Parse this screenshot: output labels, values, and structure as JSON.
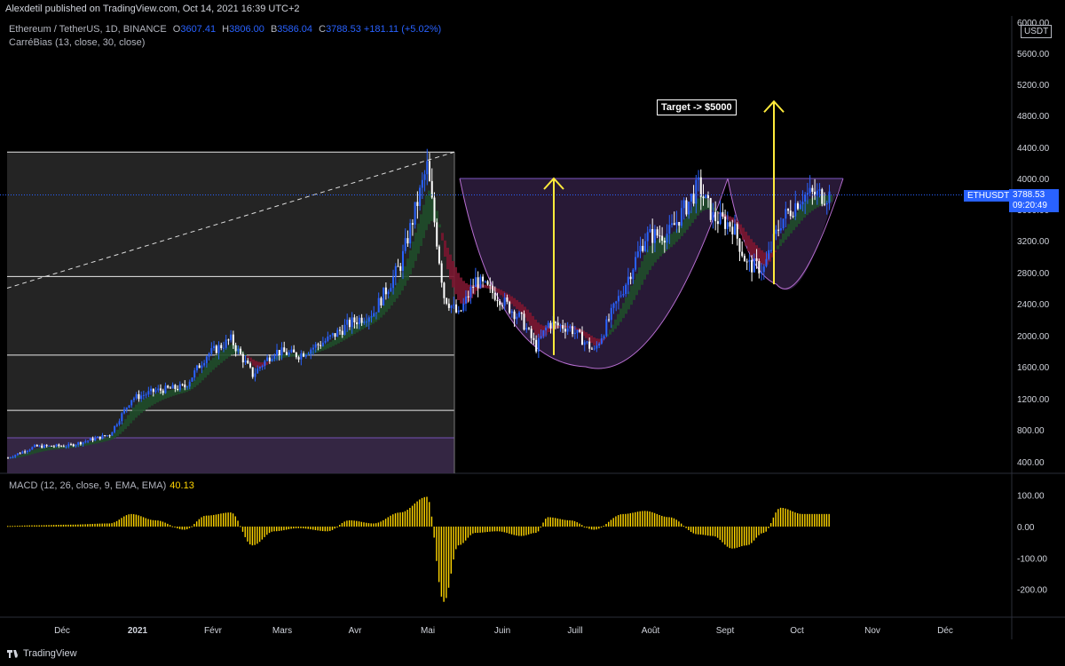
{
  "header": {
    "published": "Alexdetil published on TradingView.com, Oct 14, 2021 16:39 UTC+2",
    "symbol_line": "Ethereum / TetherUS, 1D, BINANCE",
    "open_key": "O",
    "open": "3607.41",
    "high_key": "H",
    "high": "3806.00",
    "low_key": "B",
    "low": "3586.04",
    "close_key": "C",
    "close": "3788.53",
    "change": "+181.11 (+5.02%)",
    "indicator": "CarréBias (13, close, 30, close)",
    "currency": "USDT"
  },
  "macd_label": {
    "name": "MACD (12, 26, close, 9, EMA, EMA)",
    "value": "40.13"
  },
  "badges": {
    "symbol": "ETHUSDT",
    "price": "3788.53",
    "countdown": "09:20:49"
  },
  "annotation": {
    "target": "Target -> $5000"
  },
  "footer": {
    "brand": "TradingView"
  },
  "colors": {
    "candle": "#2962ff",
    "candle_white": "#ffffff",
    "macd_hist": "#ffd500",
    "arrow": "#ffeb3b",
    "green_band": "#1f4d2a",
    "red_band": "#7a1630",
    "purple_zone": "#3a2a4a",
    "grey_zone": "#2a2a2a"
  },
  "chart_data": [
    {
      "type": "candlestick",
      "title": "Ethereum / TetherUS, 1D, BINANCE",
      "x_ticks": [
        "Déc",
        "2021",
        "Févr",
        "Mars",
        "Avr",
        "Mai",
        "Juin",
        "Juill",
        "Août",
        "Sept",
        "Oct",
        "Nov",
        "Déc"
      ],
      "y_ticks": [
        "400.00",
        "800.00",
        "1200.00",
        "1600.00",
        "2000.00",
        "2400.00",
        "2800.00",
        "3200.00",
        "3600.00",
        "4000.00",
        "4400.00",
        "4800.00",
        "5200.00",
        "5600.00",
        "6000.00"
      ],
      "ylim": [
        200,
        6000
      ],
      "last_price": 3788.53,
      "series": [
        {
          "name": "ETHUSDT",
          "x": [
            "Nov-20",
            "Dec-01",
            "Dec-15",
            "Jan-01",
            "Jan-10",
            "Jan-20",
            "Feb-01",
            "Feb-10",
            "Feb-20",
            "Mar-01",
            "Mar-10",
            "Mar-20",
            "Apr-01",
            "Apr-10",
            "Apr-20",
            "May-01",
            "May-12",
            "May-19",
            "May-25",
            "Jun-01",
            "Jun-10",
            "Jun-20",
            "Jun-26",
            "Jul-01",
            "Jul-10",
            "Jul-20",
            "Aug-01",
            "Aug-10",
            "Aug-20",
            "Sep-01",
            "Sep-07",
            "Sep-15",
            "Sep-21",
            "Sep-28",
            "Oct-05",
            "Oct-14"
          ],
          "close": [
            450,
            590,
            600,
            740,
            1200,
            1300,
            1350,
            1750,
            1950,
            1500,
            1800,
            1750,
            1950,
            2150,
            2300,
            2900,
            4150,
            2500,
            2250,
            2700,
            2500,
            2200,
            1850,
            2150,
            2100,
            1800,
            2600,
            3250,
            3300,
            3900,
            3500,
            3400,
            2900,
            2850,
            3450,
            3788.53
          ]
        }
      ],
      "annotations": [
        "Target -> $5000"
      ]
    },
    {
      "type": "bar",
      "title": "MACD (12, 26, close, 9, EMA, EMA)",
      "y_ticks": [
        "100.00",
        "0.00",
        "-100.00",
        "-200.00"
      ],
      "ylim": [
        -250,
        130
      ],
      "last_value": 40.13,
      "x": [
        "Nov-20",
        "Dec-01",
        "Dec-15",
        "Jan-01",
        "Jan-10",
        "Jan-20",
        "Feb-01",
        "Feb-10",
        "Feb-20",
        "Mar-01",
        "Mar-10",
        "Mar-20",
        "Apr-01",
        "Apr-10",
        "Apr-20",
        "May-01",
        "May-12",
        "May-19",
        "May-25",
        "Jun-01",
        "Jun-10",
        "Jun-20",
        "Jun-26",
        "Jul-01",
        "Jul-10",
        "Jul-20",
        "Aug-01",
        "Aug-10",
        "Aug-20",
        "Sep-01",
        "Sep-07",
        "Sep-15",
        "Sep-21",
        "Sep-28",
        "Oct-05",
        "Oct-14"
      ],
      "values": [
        2,
        4,
        6,
        10,
        40,
        20,
        -10,
        35,
        45,
        -60,
        -15,
        -5,
        -15,
        20,
        10,
        45,
        95,
        -240,
        -60,
        -20,
        -15,
        -30,
        -20,
        30,
        20,
        -10,
        40,
        50,
        30,
        -25,
        -30,
        -70,
        -60,
        -20,
        60,
        40.13
      ]
    }
  ]
}
